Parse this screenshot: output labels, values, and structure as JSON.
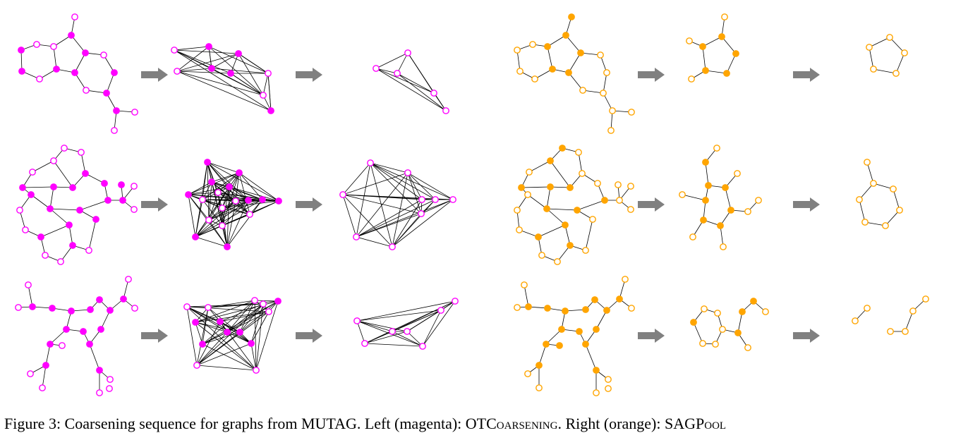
{
  "figure": {
    "colors": {
      "left": "#ff00ff",
      "right": "#ffa500",
      "arrow": "#808080",
      "edge": "#000000"
    }
  },
  "caption": {
    "prefix": "Figure 3: Coarsening sequence for graphs from MUTAG. Left (magenta): ",
    "method_left": "OTCoarsening",
    "middle": ". Right (orange): ",
    "method_right": "SAGPool"
  }
}
